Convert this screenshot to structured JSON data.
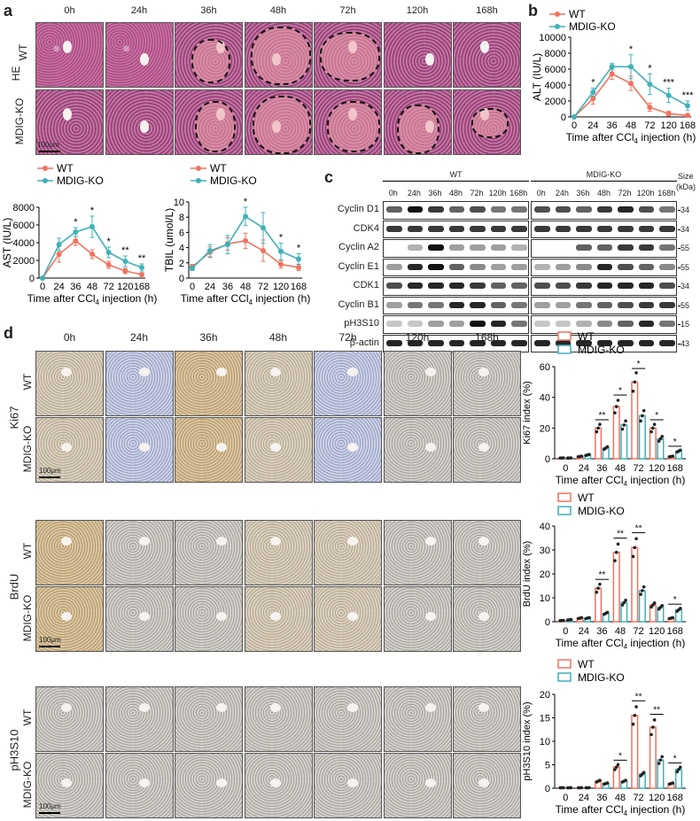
{
  "panels": {
    "a": "a",
    "b": "b",
    "c": "c",
    "d": "d"
  },
  "timepoints": [
    "0h",
    "24h",
    "36h",
    "48h",
    "72h",
    "120h",
    "168h"
  ],
  "genotypes": {
    "wt": "WT",
    "ko": "MDIG-KO"
  },
  "panel_a": {
    "stain": "HE",
    "scalebar": "100μm"
  },
  "legend": {
    "wt": "WT",
    "ko": "MDIG-KO"
  },
  "xlabel_prefix": "Time after CCl",
  "xlabel_sub": "4",
  "xlabel_suffix": " injection (h)",
  "colors": {
    "wt": "#f2725e",
    "ko": "#3fb2b8"
  },
  "chart_data": [
    {
      "id": "alt",
      "type": "line",
      "ylabel": "ALT (IU/L)",
      "ylim": [
        0,
        10000
      ],
      "yticks": [
        0,
        2000,
        4000,
        6000,
        8000,
        10000
      ],
      "x": [
        0,
        24,
        36,
        48,
        72,
        120,
        168
      ],
      "series": [
        {
          "name": "WT",
          "values": [
            0,
            2300,
            5400,
            4200,
            1200,
            400,
            200
          ],
          "err": [
            0,
            700,
            700,
            900,
            500,
            300,
            200
          ]
        },
        {
          "name": "MDIG-KO",
          "values": [
            0,
            3100,
            6300,
            6300,
            4100,
            2700,
            1400
          ],
          "err": [
            0,
            500,
            400,
            1500,
            1300,
            900,
            600
          ]
        }
      ],
      "sig": [
        "",
        "*",
        "",
        "*",
        "*",
        "***",
        "***"
      ]
    },
    {
      "id": "ast",
      "type": "line",
      "ylabel": "AST (IU/L)",
      "ylim": [
        0,
        8000
      ],
      "yticks": [
        0,
        2000,
        4000,
        6000,
        8000
      ],
      "x": [
        0,
        24,
        36,
        48,
        72,
        120,
        168
      ],
      "series": [
        {
          "name": "WT",
          "values": [
            0,
            2700,
            4200,
            2700,
            1500,
            800,
            400
          ],
          "err": [
            0,
            900,
            500,
            500,
            400,
            300,
            200
          ]
        },
        {
          "name": "MDIG-KO",
          "values": [
            0,
            3800,
            5200,
            5800,
            2900,
            1900,
            1200
          ],
          "err": [
            0,
            700,
            500,
            1200,
            600,
            600,
            400
          ]
        }
      ],
      "sig": [
        "",
        "",
        "*",
        "*",
        "*",
        "**",
        "**"
      ]
    },
    {
      "id": "tbil",
      "type": "line",
      "ylabel": "TBIL (umol/L)",
      "ylim": [
        0,
        10
      ],
      "yticks": [
        0,
        2,
        4,
        6,
        8,
        10
      ],
      "x": [
        0,
        24,
        36,
        48,
        72,
        120,
        168
      ],
      "series": [
        {
          "name": "WT",
          "values": [
            1.5,
            3.4,
            4.5,
            4.9,
            3.6,
            1.8,
            1.4
          ],
          "err": [
            0.3,
            0.7,
            0.8,
            1.0,
            1.4,
            0.5,
            0.4
          ]
        },
        {
          "name": "MDIG-KO",
          "values": [
            1.3,
            3.6,
            4.4,
            8.1,
            6.6,
            3.5,
            2.5
          ],
          "err": [
            0.3,
            0.8,
            1.2,
            1.2,
            2.0,
            1.1,
            0.7
          ]
        }
      ],
      "sig": [
        "",
        "",
        "",
        "*",
        "",
        "*",
        "*"
      ]
    },
    {
      "id": "ki67",
      "type": "bar",
      "ylabel": "Ki67 index (%)",
      "ylim": [
        0,
        60
      ],
      "yticks": [
        0,
        20,
        40,
        60
      ],
      "categories": [
        "0",
        "24",
        "36",
        "48",
        "72",
        "120",
        "168"
      ],
      "series": [
        {
          "name": "WT",
          "values": [
            0.5,
            1.5,
            20,
            34,
            50,
            20,
            1.5
          ]
        },
        {
          "name": "MDIG-KO",
          "values": [
            0.5,
            2.5,
            7,
            22,
            28,
            13,
            5
          ]
        }
      ],
      "sig": [
        "",
        "",
        "**",
        "*",
        "*",
        "*",
        "*"
      ]
    },
    {
      "id": "brdu",
      "type": "bar",
      "ylabel": "BrdU index (%)",
      "ylim": [
        0,
        40
      ],
      "yticks": [
        0,
        10,
        20,
        30,
        40
      ],
      "categories": [
        "0",
        "24",
        "36",
        "48",
        "72",
        "120",
        "168"
      ],
      "series": [
        {
          "name": "WT",
          "values": [
            0.5,
            1.5,
            14,
            29,
            31,
            7,
            1.5
          ]
        },
        {
          "name": "MDIG-KO",
          "values": [
            0.8,
            1.5,
            3.5,
            8,
            13,
            6,
            5
          ]
        }
      ],
      "sig": [
        "",
        "",
        "**",
        "**",
        "**",
        "",
        "*"
      ]
    },
    {
      "id": "ph3s10",
      "type": "bar",
      "ylabel": "pH3S10 index (%)",
      "ylim": [
        0,
        20
      ],
      "yticks": [
        0,
        5,
        10,
        15,
        20
      ],
      "categories": [
        "0",
        "24",
        "36",
        "48",
        "72",
        "120",
        "168"
      ],
      "series": [
        {
          "name": "WT",
          "values": [
            0.1,
            0.1,
            1.5,
            4.5,
            15.5,
            13,
            1
          ]
        },
        {
          "name": "MDIG-KO",
          "values": [
            0.1,
            0.1,
            1,
            1.5,
            3,
            6,
            4
          ]
        }
      ],
      "sig": [
        "",
        "",
        "",
        "*",
        "**",
        "**",
        "*"
      ]
    }
  ],
  "blot": {
    "wt_header": "WT",
    "ko_header": "MDIG-KO",
    "lanes": [
      "0h",
      "24h",
      "36h",
      "48h",
      "72h",
      "120h",
      "168h"
    ],
    "size_header": "Size",
    "size_unit": "(kDa)",
    "rows": [
      {
        "protein": "Cyclin D1",
        "kda": "34"
      },
      {
        "protein": "CDK4",
        "kda": "34"
      },
      {
        "protein": "Cyclin A2",
        "kda": "55"
      },
      {
        "protein": "Cyclin E1",
        "kda": "55"
      },
      {
        "protein": "CDK1",
        "kda": "34"
      },
      {
        "protein": "Cyclin B1",
        "kda": "55"
      },
      {
        "protein": "pH3S10",
        "kda": "15"
      },
      {
        "protein": "β-actin",
        "kda": "43"
      }
    ]
  },
  "ihc_stains": [
    {
      "name": "Ki67",
      "scalebar": "100μm"
    },
    {
      "name": "BrdU",
      "scalebar": "100μm"
    },
    {
      "name": "pH3S10",
      "scalebar": "100μm"
    }
  ]
}
